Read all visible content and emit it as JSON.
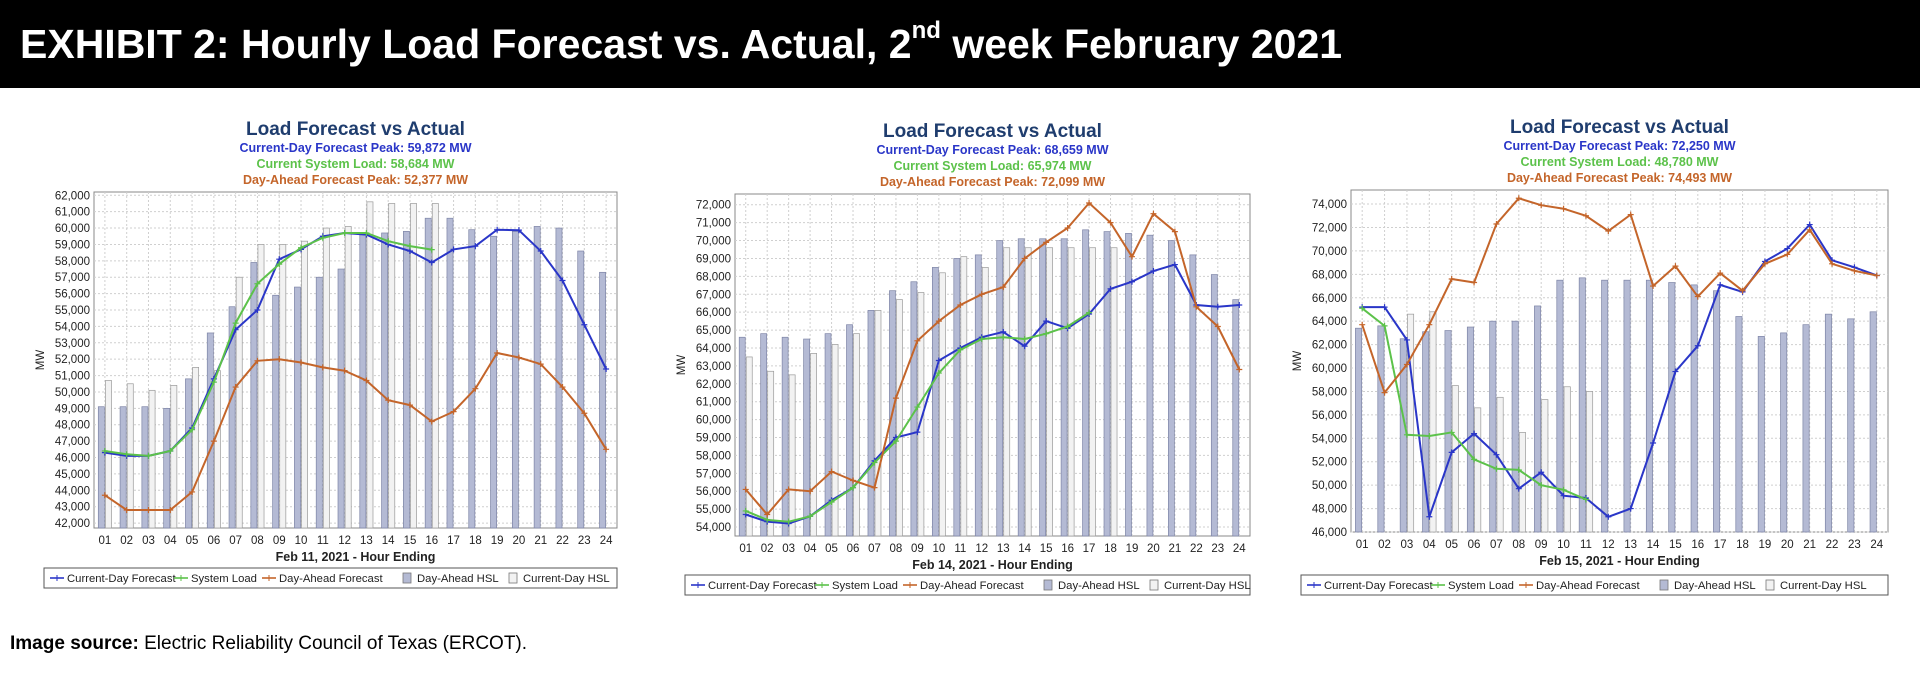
{
  "header": {
    "title_pre": "EXHIBIT 2: Hourly Load Forecast vs. Actual, 2",
    "title_sup": "nd",
    "title_post": " week February 2021"
  },
  "source": {
    "label": "Image source:",
    "text": " Electric Reliability Council of Texas (ERCOT)."
  },
  "colors": {
    "current_day": "#2a36c8",
    "system_load": "#5cc24a",
    "day_ahead": "#c4652a",
    "day_ahead_hsl": "#b4bad4",
    "current_day_hsl": "#f2f2f2",
    "title": "#1f3d6e"
  },
  "legend_labels": [
    "Current-Day Forecast",
    "System Load",
    "Day-Ahead Forecast",
    "Day-Ahead HSL",
    "Current-Day HSL"
  ],
  "chart_data": [
    {
      "type": "line",
      "title": "Load Forecast vs Actual",
      "subtitles": [
        "Current-Day Forecast Peak:  59,872 MW",
        "Current System Load:  58,684 MW",
        "Day-Ahead Forecast Peak:  52,377 MW"
      ],
      "xlabel": "Feb 11, 2021 - Hour Ending",
      "ylabel": "MW",
      "ylim": [
        41700,
        62200
      ],
      "yticks": [
        42000,
        43000,
        44000,
        45000,
        46000,
        47000,
        48000,
        49000,
        50000,
        51000,
        52000,
        53000,
        54000,
        55000,
        56000,
        57000,
        58000,
        59000,
        60000,
        61000,
        62000
      ],
      "x": [
        "01",
        "02",
        "03",
        "04",
        "05",
        "06",
        "07",
        "08",
        "09",
        "10",
        "11",
        "12",
        "13",
        "14",
        "15",
        "16",
        "17",
        "18",
        "19",
        "20",
        "21",
        "22",
        "23",
        "24"
      ],
      "grid": true,
      "legend": "bottom",
      "day_ahead_hsl": [
        49100,
        49100,
        49100,
        49000,
        50800,
        53600,
        55200,
        57900,
        55900,
        56400,
        57000,
        57500,
        59700,
        59700,
        59800,
        60600,
        60600,
        59900,
        59500,
        59800,
        60100,
        60000,
        58600,
        57300
      ],
      "current_day_hsl": [
        50700,
        50500,
        50100,
        50400,
        51500,
        51300,
        57000,
        59000,
        59000,
        59200,
        60000,
        60100,
        61600,
        61500,
        61500,
        61500,
        null,
        null,
        null,
        null,
        null,
        null,
        null,
        null
      ],
      "series": [
        {
          "name": "Current-Day Forecast",
          "values": [
            46300,
            46100,
            46100,
            46400,
            47800,
            50800,
            53800,
            55000,
            58100,
            58700,
            59500,
            59700,
            59600,
            59000,
            58600,
            57900,
            58700,
            58900,
            59900,
            59872,
            58600,
            56800,
            54100,
            51400
          ]
        },
        {
          "name": "System Load",
          "values": [
            46400,
            46200,
            46100,
            46400,
            47700,
            50600,
            54200,
            56600,
            57800,
            58800,
            59400,
            59700,
            59700,
            59200,
            58900,
            58684,
            null,
            null,
            null,
            null,
            null,
            null,
            null,
            null
          ]
        },
        {
          "name": "Day-Ahead Forecast",
          "values": [
            43700,
            42800,
            42800,
            42800,
            43900,
            47000,
            50300,
            51900,
            52000,
            51800,
            51500,
            51300,
            50700,
            49500,
            49200,
            48200,
            48800,
            50200,
            52377,
            52100,
            51700,
            50300,
            48700,
            46500
          ]
        }
      ]
    },
    {
      "type": "line",
      "title": "Load Forecast vs Actual",
      "subtitles": [
        "Current-Day Forecast Peak:  68,659 MW",
        "Current System Load:  65,974 MW",
        "Day-Ahead Forecast Peak:  72,099 MW"
      ],
      "xlabel": "Feb 14, 2021 - Hour Ending",
      "ylabel": "MW",
      "ylim": [
        53500,
        72600
      ],
      "yticks": [
        54000,
        55000,
        56000,
        57000,
        58000,
        59000,
        60000,
        61000,
        62000,
        63000,
        64000,
        65000,
        66000,
        67000,
        68000,
        69000,
        70000,
        71000,
        72000
      ],
      "x": [
        "01",
        "02",
        "03",
        "04",
        "05",
        "06",
        "07",
        "08",
        "09",
        "10",
        "11",
        "12",
        "13",
        "14",
        "15",
        "16",
        "17",
        "18",
        "19",
        "20",
        "21",
        "22",
        "23",
        "24"
      ],
      "grid": true,
      "legend": "bottom",
      "day_ahead_hsl": [
        64600,
        64800,
        64600,
        64500,
        64800,
        65300,
        66100,
        67200,
        67700,
        68500,
        69000,
        69200,
        70000,
        70100,
        70100,
        70100,
        70600,
        70500,
        70400,
        70300,
        70000,
        69200,
        68100,
        66700
      ],
      "current_day_hsl": [
        63500,
        62700,
        62500,
        63700,
        64200,
        64800,
        66100,
        66700,
        67100,
        68200,
        69100,
        68500,
        69600,
        69600,
        69600,
        69600,
        69600,
        69600,
        null,
        null,
        null,
        null,
        null,
        null
      ],
      "series": [
        {
          "name": "Current-Day Forecast",
          "values": [
            54700,
            54300,
            54200,
            54600,
            55500,
            56200,
            57700,
            59000,
            59300,
            63300,
            64000,
            64600,
            64900,
            64100,
            65500,
            65100,
            65900,
            67300,
            67700,
            68300,
            68659,
            66400,
            66300,
            66400
          ]
        },
        {
          "name": "System Load",
          "values": [
            54900,
            54400,
            54300,
            54600,
            55400,
            56200,
            57600,
            58800,
            60700,
            62600,
            63900,
            64500,
            64600,
            64500,
            64800,
            65200,
            65974,
            null,
            null,
            null,
            null,
            null,
            null,
            null
          ]
        },
        {
          "name": "Day-Ahead Forecast",
          "values": [
            56100,
            54700,
            56100,
            56000,
            57100,
            56600,
            56200,
            61200,
            64400,
            65500,
            66400,
            67000,
            67400,
            69000,
            69900,
            70700,
            72099,
            71000,
            69100,
            71500,
            70500,
            66300,
            65200,
            62800
          ]
        }
      ]
    },
    {
      "type": "line",
      "title": "Load Forecast vs Actual",
      "subtitles": [
        "Current-Day Forecast Peak:  72,250 MW",
        "Current System Load:  48,780 MW",
        "Day-Ahead Forecast Peak:  74,493 MW"
      ],
      "xlabel": "Feb 15, 2021 - Hour Ending",
      "ylabel": "MW",
      "ylim": [
        46000,
        75200
      ],
      "yticks": [
        46000,
        48000,
        50000,
        52000,
        54000,
        56000,
        58000,
        60000,
        62000,
        64000,
        66000,
        68000,
        70000,
        72000,
        74000
      ],
      "x": [
        "01",
        "02",
        "03",
        "04",
        "05",
        "06",
        "07",
        "08",
        "09",
        "10",
        "11",
        "12",
        "13",
        "14",
        "15",
        "16",
        "17",
        "18",
        "19",
        "20",
        "21",
        "22",
        "23",
        "24"
      ],
      "grid": true,
      "legend": "bottom",
      "day_ahead_hsl": [
        63400,
        63600,
        62500,
        63100,
        63200,
        63500,
        64000,
        64000,
        65300,
        67500,
        67700,
        67500,
        67500,
        67500,
        67300,
        67100,
        66600,
        64400,
        62700,
        63000,
        63700,
        64600,
        64200,
        64800
      ],
      "current_day_hsl": [
        null,
        null,
        64600,
        64800,
        58500,
        56600,
        57500,
        54500,
        57300,
        58400,
        58000,
        null,
        null,
        null,
        null,
        null,
        null,
        null,
        null,
        null,
        null,
        null,
        null,
        null
      ],
      "series": [
        {
          "name": "Current-Day Forecast",
          "values": [
            65200,
            65200,
            62400,
            47300,
            52800,
            54400,
            52600,
            49700,
            51100,
            49100,
            48900,
            47300,
            48000,
            53600,
            59700,
            61900,
            67100,
            66500,
            69100,
            70200,
            72250,
            69200,
            68600,
            67900
          ]
        },
        {
          "name": "System Load",
          "values": [
            65100,
            63600,
            54300,
            54200,
            54500,
            52200,
            51400,
            51300,
            50000,
            49600,
            48780,
            null,
            null,
            null,
            null,
            null,
            null,
            null,
            null,
            null,
            null,
            null,
            null,
            null
          ]
        },
        {
          "name": "Day-Ahead Forecast",
          "values": [
            63700,
            57900,
            60300,
            63700,
            67600,
            67300,
            72300,
            74493,
            73900,
            73600,
            73000,
            71700,
            73100,
            67000,
            68700,
            66100,
            68100,
            66600,
            68900,
            69700,
            71800,
            68900,
            68300,
            67900
          ]
        }
      ]
    }
  ]
}
